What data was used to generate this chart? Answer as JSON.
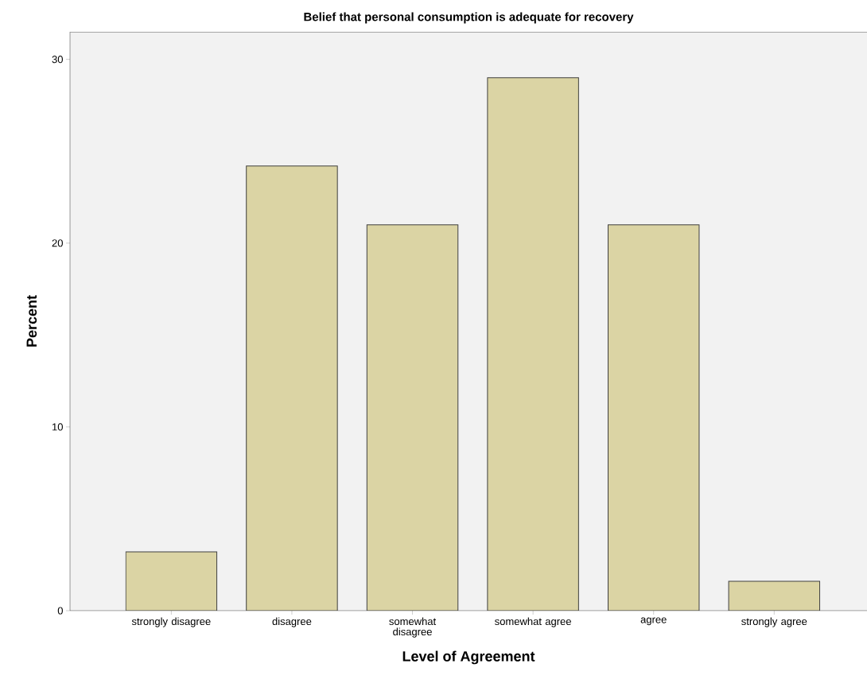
{
  "chart_data": {
    "type": "bar",
    "title": "Belief that personal consumption is adequate for recovery",
    "xlabel": "Level of Agreement",
    "ylabel": "Percent",
    "categories": [
      "strongly disagree",
      "disagree",
      "somewhat disagree",
      "somewhat agree",
      "agree",
      "strongly agree"
    ],
    "values": [
      3.2,
      24.2,
      21.0,
      29.0,
      21.0,
      1.6
    ],
    "color": "#dbd4a4",
    "ylim": [
      0,
      31.5
    ],
    "yticks": [
      0,
      10,
      20,
      30
    ]
  }
}
